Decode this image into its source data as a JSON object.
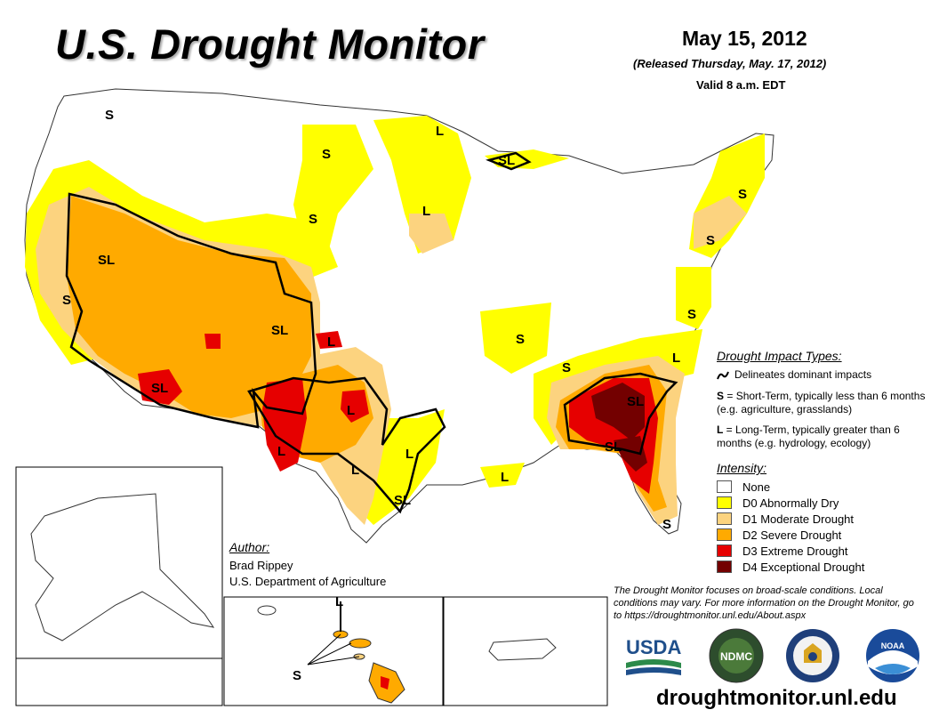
{
  "header": {
    "title": "U.S. Drought Monitor",
    "date": "May 15, 2012",
    "released": "(Released Thursday, May. 17, 2012)",
    "valid": "Valid 8 a.m. EDT"
  },
  "map_labels": {
    "S": "S",
    "L": "L",
    "SL": "SL"
  },
  "legend": {
    "impact_header": "Drought Impact Types:",
    "impact_line": "Delineates dominant impacts",
    "short_key": "S",
    "short_text": " = Short-Term, typically less than 6 months (e.g. agriculture, grasslands)",
    "long_key": "L",
    "long_text": " = Long-Term, typically greater than 6 months (e.g. hydrology, ecology)",
    "intensity_header": "Intensity:",
    "categories": [
      {
        "label": "None",
        "color": "#ffffff"
      },
      {
        "label": "D0 Abnormally Dry",
        "color": "#ffff00"
      },
      {
        "label": "D1 Moderate Drought",
        "color": "#fcd37f"
      },
      {
        "label": "D2 Severe Drought",
        "color": "#ffaa00"
      },
      {
        "label": "D3 Extreme Drought",
        "color": "#e60000"
      },
      {
        "label": "D4 Exceptional Drought",
        "color": "#730000"
      }
    ]
  },
  "author": {
    "header": "Author:",
    "name": "Brad Rippey",
    "org": "U.S. Department of Agriculture"
  },
  "note": "The Drought Monitor focuses on broad-scale conditions. Local conditions may vary. For more information on the Drought Monitor, go to https://droughtmonitor.unl.edu/About.aspx",
  "logos": {
    "usda": "USDA",
    "ndmc": "NDMC",
    "noaa": "NOAA"
  },
  "url": "droughtmonitor.unl.edu"
}
